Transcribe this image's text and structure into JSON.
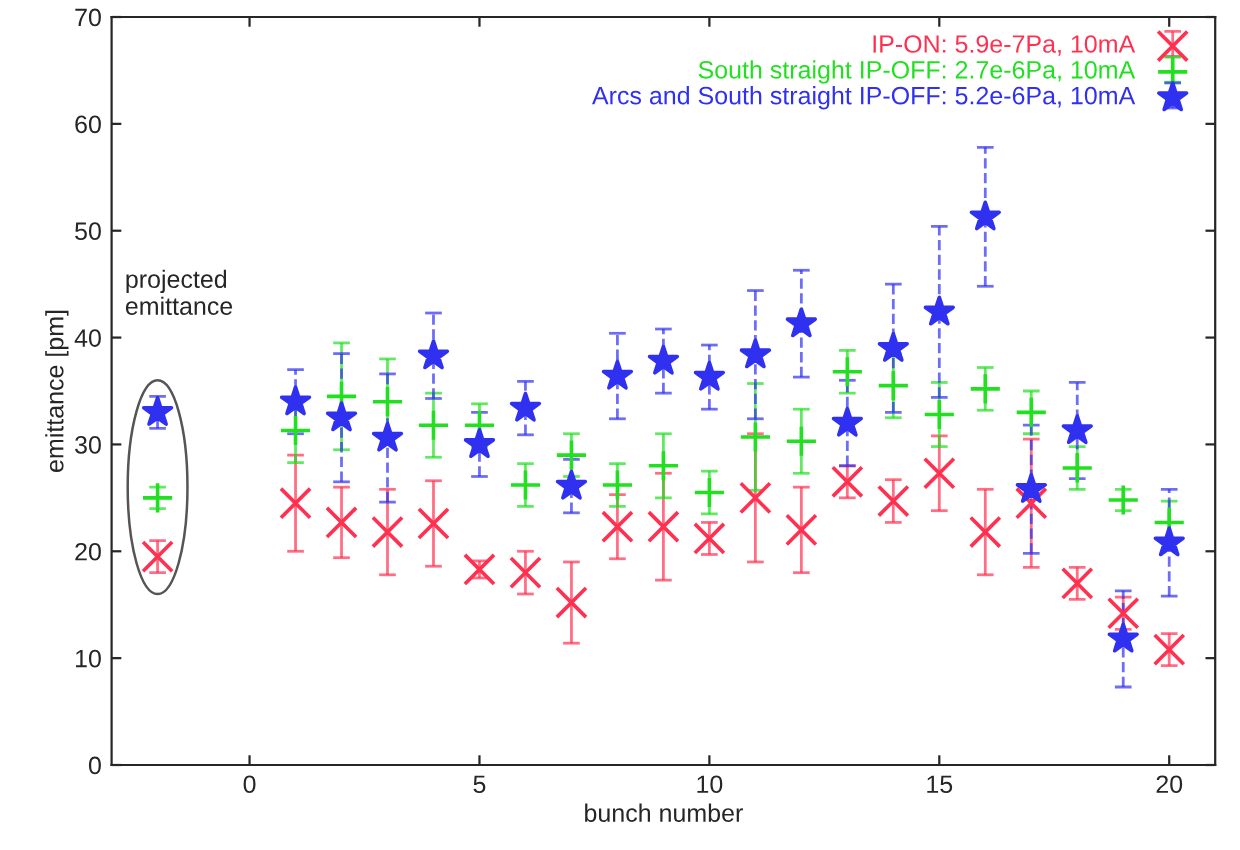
{
  "chart_data": {
    "type": "scatter",
    "xlabel": "bunch number",
    "ylabel": "emittance [pm]",
    "x": [
      -2,
      1,
      2,
      3,
      4,
      5,
      6,
      7,
      8,
      9,
      10,
      11,
      12,
      13,
      14,
      15,
      16,
      17,
      18,
      19,
      20
    ],
    "series": [
      {
        "name": "IP-ON: 5.9e-7Pa, 10mA",
        "color": "#ff3050",
        "marker": "cross",
        "line_style": "solid",
        "values": [
          19.5,
          24.5,
          22.7,
          21.8,
          22.6,
          18.3,
          18,
          15.2,
          22.3,
          22.3,
          21.2,
          25,
          22,
          26.5,
          24.7,
          27.3,
          21.8,
          24.5,
          17,
          14.2,
          10.8
        ],
        "errors": [
          1.5,
          4.5,
          3.3,
          4,
          4,
          0.8,
          2,
          3.8,
          3,
          5,
          1.5,
          6,
          4,
          1.5,
          2,
          3.5,
          4,
          6,
          1.5,
          1.5,
          1.5
        ]
      },
      {
        "name": "South straight IP-OFF: 2.7e-6Pa, 10mA",
        "color": "#20e020",
        "marker": "plus",
        "line_style": "solid",
        "values": [
          25,
          31.3,
          34.5,
          34,
          31.8,
          31.8,
          26.2,
          29,
          26.2,
          28,
          25.5,
          30.7,
          30.3,
          36.8,
          35.5,
          32.8,
          35.2,
          33,
          27.8,
          24.8,
          22.7
        ],
        "errors": [
          1,
          3,
          5,
          4,
          3,
          2,
          2,
          2,
          2,
          3,
          2,
          5,
          3,
          2,
          3,
          3,
          2,
          2,
          2,
          1,
          2
        ]
      },
      {
        "name": "Arcs and South straight IP-OFF: 5.2e-6Pa, 10mA",
        "color": "#3030f0",
        "marker": "star",
        "line_style": "dashed",
        "values": [
          33,
          34,
          32.5,
          30.6,
          38.3,
          30,
          33.4,
          26.1,
          36.4,
          37.8,
          36.3,
          38.4,
          41.3,
          32,
          39,
          42.4,
          51.3,
          25.8,
          31.3,
          11.8,
          20.8
        ],
        "errors": [
          1.5,
          3,
          6,
          6,
          4,
          3,
          2.5,
          2.5,
          4,
          3,
          3,
          6,
          5,
          4,
          6,
          8,
          6.5,
          6,
          4.5,
          4.5,
          5
        ]
      }
    ],
    "annotations": [
      "projected\nemittance"
    ],
    "xlim": [
      -3,
      21
    ],
    "xticks": [
      0,
      5,
      10,
      15,
      20
    ],
    "ylim": [
      0,
      70
    ],
    "yticks": [
      0,
      10,
      20,
      30,
      40,
      50,
      60,
      70
    ],
    "grid": false,
    "legend": "top right"
  }
}
